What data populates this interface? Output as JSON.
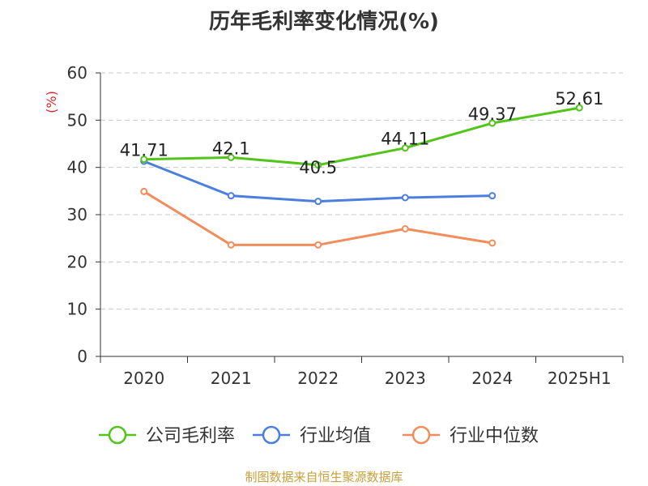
{
  "chart_data": {
    "type": "line",
    "title": "历年毛利率变化情况(%)",
    "ylabel": "(%)",
    "xlabel": "",
    "categories": [
      "2020",
      "2021",
      "2022",
      "2023",
      "2024",
      "2025H1"
    ],
    "ylim": [
      0,
      60
    ],
    "yticks": [
      0,
      10,
      20,
      30,
      40,
      50,
      60
    ],
    "grid": true,
    "legend_position": "bottom",
    "series": [
      {
        "name": "公司毛利率",
        "color": "#52c41a",
        "values": [
          41.71,
          42.1,
          40.5,
          44.11,
          49.37,
          52.61
        ],
        "labels": [
          "41.71",
          "42.1",
          "40.5",
          "44.11",
          "49.37",
          "52.61"
        ]
      },
      {
        "name": "行业均值",
        "color": "#4a7fe0",
        "values": [
          41.3,
          34.0,
          32.8,
          33.6,
          34.0,
          null
        ]
      },
      {
        "name": "行业中位数",
        "color": "#f28c5a",
        "values": [
          34.9,
          23.6,
          23.6,
          27.0,
          24.0,
          null
        ]
      }
    ]
  },
  "footer": {
    "source": "制图数据来自恒生聚源数据库"
  }
}
